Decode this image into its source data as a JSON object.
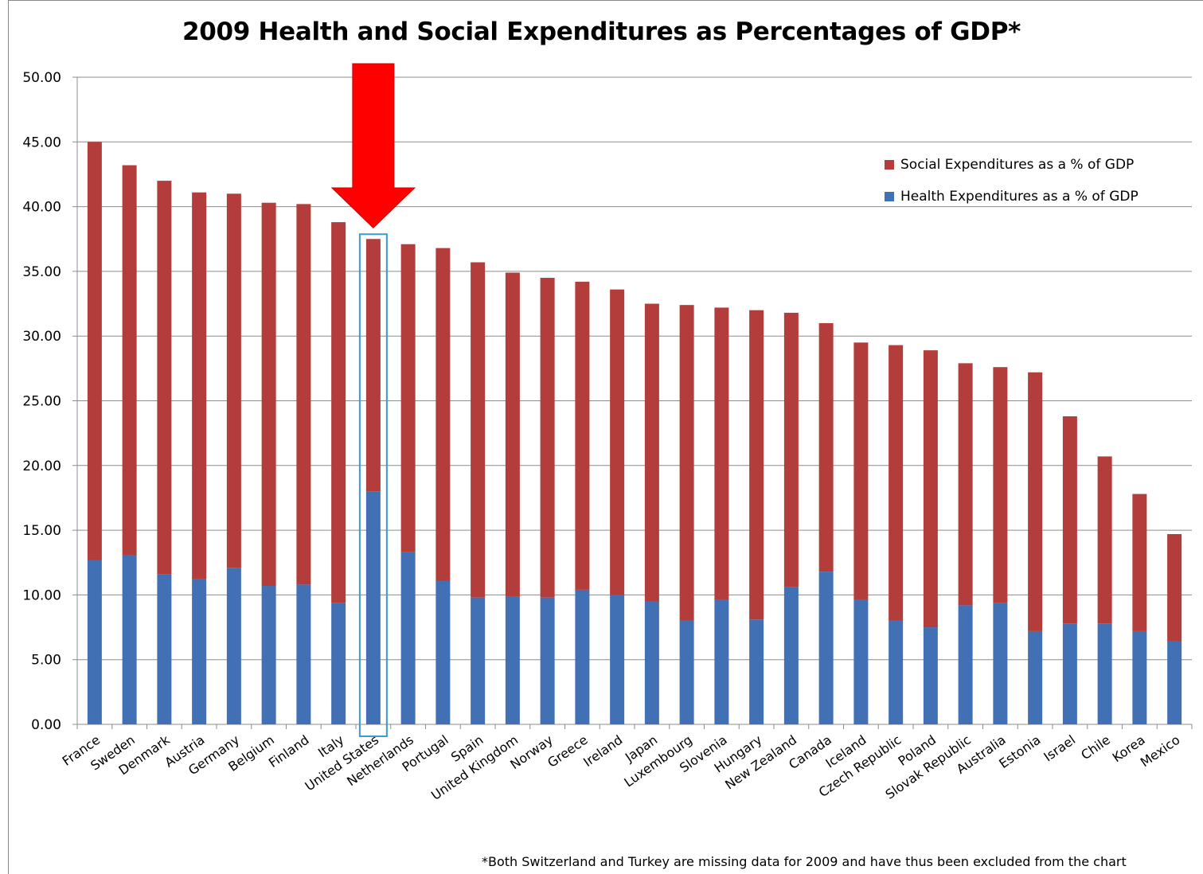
{
  "chart_data": {
    "type": "bar",
    "stacked": true,
    "title": "2009 Health and Social Expenditures as Percentages of GDP*",
    "xlabel": "",
    "ylabel": "",
    "ylim": [
      0,
      50
    ],
    "yticks": [
      "0.00",
      "5.00",
      "10.00",
      "15.00",
      "20.00",
      "25.00",
      "30.00",
      "35.00",
      "40.00",
      "45.00",
      "50.00"
    ],
    "grid": true,
    "legend_position": "top-right",
    "categories": [
      "France",
      "Sweden",
      "Denmark",
      "Austria",
      "Germany",
      "Belgium",
      "Finland",
      "Italy",
      "United States",
      "Netherlands",
      "Portugal",
      "Spain",
      "United Kingdom",
      "Norway",
      "Greece",
      "Ireland",
      "Japan",
      "Luxembourg",
      "Slovenia",
      "Hungary",
      "New Zealand",
      "Canada",
      "Iceland",
      "Czech Republic",
      "Poland",
      "Slovak Republic",
      "Australia",
      "Estonia",
      "Israel",
      "Chile",
      "Korea",
      "Mexico"
    ],
    "series": [
      {
        "name": "Health Expenditures as a % of GDP",
        "color": "#4270b5",
        "values": [
          12.7,
          13.1,
          11.6,
          11.2,
          12.1,
          10.7,
          10.8,
          9.4,
          18.0,
          13.3,
          11.1,
          9.8,
          9.9,
          9.8,
          10.4,
          10.0,
          9.5,
          8.0,
          9.6,
          8.1,
          10.6,
          11.8,
          9.6,
          8.0,
          7.5,
          9.2,
          9.4,
          7.2,
          7.8,
          7.8,
          7.2,
          6.4
        ]
      },
      {
        "name": "Social Expenditures as a % of GDP",
        "color": "#b33d3b",
        "values": [
          32.3,
          30.1,
          30.4,
          29.9,
          28.9,
          29.6,
          29.4,
          29.4,
          19.5,
          23.8,
          25.7,
          25.9,
          25.0,
          24.7,
          23.8,
          23.6,
          23.0,
          24.4,
          22.6,
          23.9,
          21.2,
          19.2,
          19.9,
          21.3,
          21.4,
          18.7,
          18.2,
          20.0,
          16.0,
          12.9,
          10.6,
          8.3
        ]
      }
    ],
    "highlight": {
      "category": "United States",
      "box_color": "#3a9ad6",
      "arrow_color": "#ff0000"
    },
    "footnote": "*Both Switzerland and Turkey are missing data for 2009 and have thus been excluded from the chart"
  }
}
